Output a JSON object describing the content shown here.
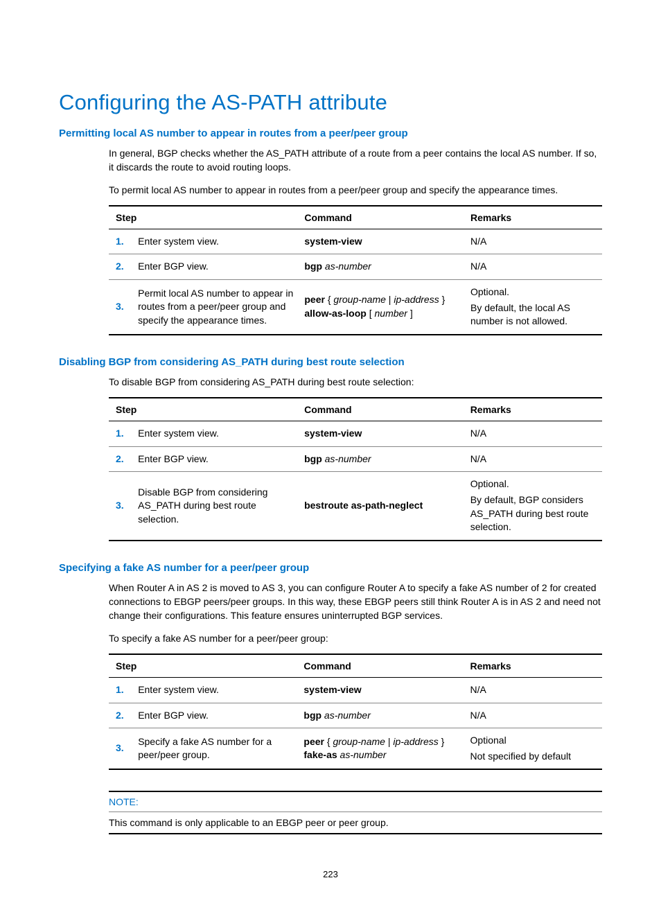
{
  "colors": {
    "accent": "#0072c6",
    "text": "#000000",
    "rule_light": "#888888",
    "background": "#ffffff"
  },
  "typography": {
    "h1_size_pt": 24,
    "h2_size_pt": 11,
    "body_size_pt": 10.5,
    "font_family": "Arial"
  },
  "title": "Configuring the AS-PATH attribute",
  "section1": {
    "heading": "Permitting local AS number to appear in routes from a peer/peer group",
    "p1": "In general, BGP checks whether the AS_PATH attribute of a route from a peer contains the local AS number. If so, it discards the route to avoid routing loops.",
    "p2": "To permit local AS number to appear in routes from a peer/peer group and specify the appearance times.",
    "table": {
      "headers": {
        "step": "Step",
        "command": "Command",
        "remarks": "Remarks"
      },
      "rows": [
        {
          "n": "1.",
          "step": "Enter system view.",
          "cmd_bold1": "system-view",
          "remarks1": "N/A"
        },
        {
          "n": "2.",
          "step": "Enter BGP view.",
          "cmd_bold1": "bgp",
          "cmd_ital1": " as-number",
          "remarks1": "N/A"
        },
        {
          "n": "3.",
          "step": "Permit local AS number to appear in routes from a peer/peer group and specify the appearance times.",
          "cmd_bold1": "peer",
          "cmd_plain1": " { ",
          "cmd_ital1": "group-name",
          "cmd_plain2": " | ",
          "cmd_ital2": "ip-address",
          "cmd_plain3": " } ",
          "cmd_bold2": "allow-as-loop",
          "cmd_plain4": " [ ",
          "cmd_ital3": "number",
          "cmd_plain5": " ]",
          "remarks1": "Optional.",
          "remarks2": "By default, the local AS number is not allowed."
        }
      ]
    }
  },
  "section2": {
    "heading": "Disabling BGP from considering AS_PATH during best route selection",
    "p1": "To disable BGP from considering AS_PATH during best route selection:",
    "table": {
      "headers": {
        "step": "Step",
        "command": "Command",
        "remarks": "Remarks"
      },
      "rows": [
        {
          "n": "1.",
          "step": "Enter system view.",
          "cmd_bold1": "system-view",
          "remarks1": "N/A"
        },
        {
          "n": "2.",
          "step": "Enter BGP view.",
          "cmd_bold1": "bgp",
          "cmd_ital1": " as-number",
          "remarks1": "N/A"
        },
        {
          "n": "3.",
          "step": "Disable BGP from considering AS_PATH during best route selection.",
          "cmd_bold1": "bestroute as-path-neglect",
          "remarks1": "Optional.",
          "remarks2": "By default, BGP considers AS_PATH during best route selection."
        }
      ]
    }
  },
  "section3": {
    "heading": "Specifying a fake AS number for a peer/peer group",
    "p1": "When Router A in AS 2 is moved to AS 3, you can configure Router A to specify a fake AS number of 2 for created connections to EBGP peers/peer groups. In this way, these EBGP peers still think Router A is in AS 2 and need not change their configurations. This feature ensures uninterrupted BGP services.",
    "p2": "To specify a fake AS number for a peer/peer group:",
    "table": {
      "headers": {
        "step": "Step",
        "command": "Command",
        "remarks": "Remarks"
      },
      "rows": [
        {
          "n": "1.",
          "step": "Enter system view.",
          "cmd_bold1": "system-view",
          "remarks1": "N/A"
        },
        {
          "n": "2.",
          "step": "Enter BGP view.",
          "cmd_bold1": "bgp",
          "cmd_ital1": " as-number",
          "remarks1": "N/A"
        },
        {
          "n": "3.",
          "step": "Specify a fake AS number for a peer/peer group.",
          "cmd_bold1": "peer",
          "cmd_plain1": " { ",
          "cmd_ital1": "group-name",
          "cmd_plain2": " | ",
          "cmd_ital2": "ip-address",
          "cmd_plain3": " } ",
          "cmd_bold2": "fake-as",
          "cmd_ital3": " as-number",
          "remarks1": "Optional",
          "remarks2": "Not specified by default"
        }
      ]
    }
  },
  "note": {
    "label": "NOTE:",
    "text": "This command is only applicable to an EBGP peer or peer group."
  },
  "page_number": "223"
}
